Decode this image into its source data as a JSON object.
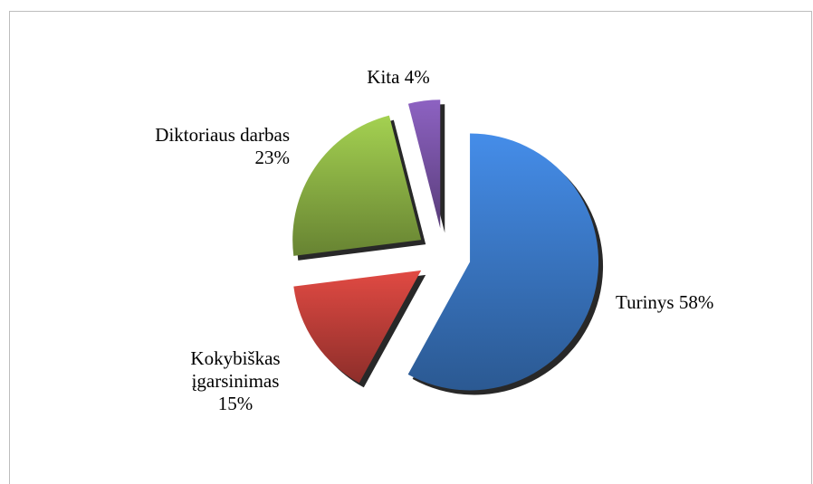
{
  "chart_data": {
    "type": "pie",
    "categories": [
      "Turinys",
      "Kokybiškas įgarsinimas",
      "Diktoriaus darbas",
      "Kita"
    ],
    "values": [
      58,
      15,
      23,
      4
    ],
    "value_labels": [
      "58%",
      "15%",
      "23%",
      "4%"
    ],
    "colors": [
      "#3c7bcb",
      "#c4403a",
      "#8fb646",
      "#7b55a9"
    ],
    "exploded": true
  }
}
